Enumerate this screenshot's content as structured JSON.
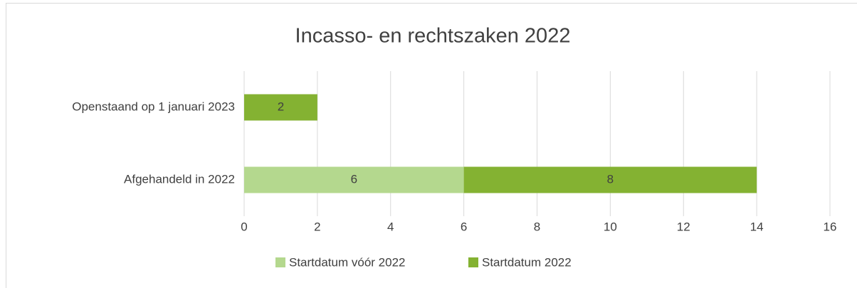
{
  "chart_data": {
    "type": "bar",
    "orientation": "horizontal",
    "stacked": true,
    "title": "Incasso- en rechtszaken 2022",
    "categories": [
      "Openstaand op 1 januari 2023",
      "Afgehandeld in 2022"
    ],
    "series": [
      {
        "name": "Startdatum vóór 2022",
        "color": "#b4d88e",
        "values": [
          null,
          6
        ]
      },
      {
        "name": "Startdatum 2022",
        "color": "#84b232",
        "values": [
          2,
          8
        ]
      }
    ],
    "xlim": [
      0,
      16
    ],
    "xticks": [
      0,
      2,
      4,
      6,
      8,
      10,
      12,
      14,
      16
    ],
    "grid": true,
    "legend": "bottom"
  }
}
